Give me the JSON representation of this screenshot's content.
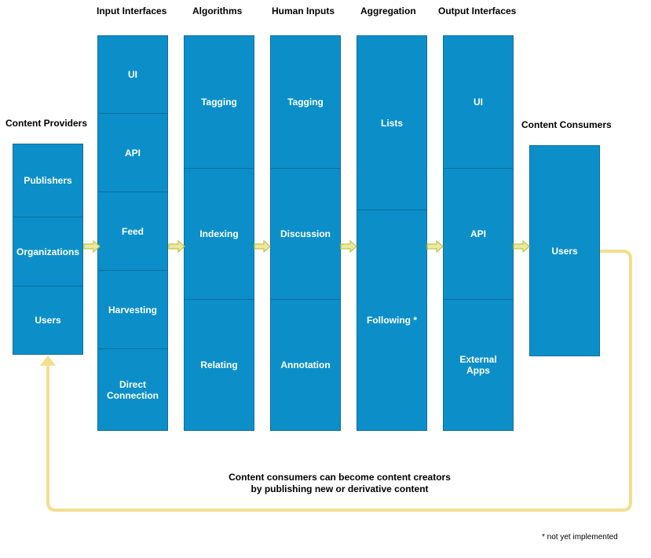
{
  "columns": [
    {
      "heading": "Content Providers",
      "cells": [
        "Publishers",
        "Organizations",
        "Users"
      ]
    },
    {
      "heading": "Input Interfaces",
      "cells": [
        "UI",
        "API",
        "Feed",
        "Harvesting",
        "Direct\nConnection"
      ]
    },
    {
      "heading": "Algorithms",
      "cells": [
        "Tagging",
        "Indexing",
        "Relating"
      ]
    },
    {
      "heading": "Human Inputs",
      "cells": [
        "Tagging",
        "Discussion",
        "Annotation"
      ]
    },
    {
      "heading": "Aggregation",
      "cells": [
        "Lists",
        "Following *"
      ]
    },
    {
      "heading": "Output Interfaces",
      "cells": [
        "UI",
        "API",
        "External\nApps"
      ]
    },
    {
      "heading": "Content Consumers",
      "cells": [
        "Users"
      ]
    }
  ],
  "loop_note": "Content consumers can become content creators\nby publishing new or derivative content",
  "footnote": "* not yet implemented",
  "colors": {
    "box": "#0c8fc9",
    "box_border": "#0b6f9c",
    "arrow": "#f0e6a0",
    "arrow_border": "#b9c94a",
    "loop": "#f3de8e"
  }
}
